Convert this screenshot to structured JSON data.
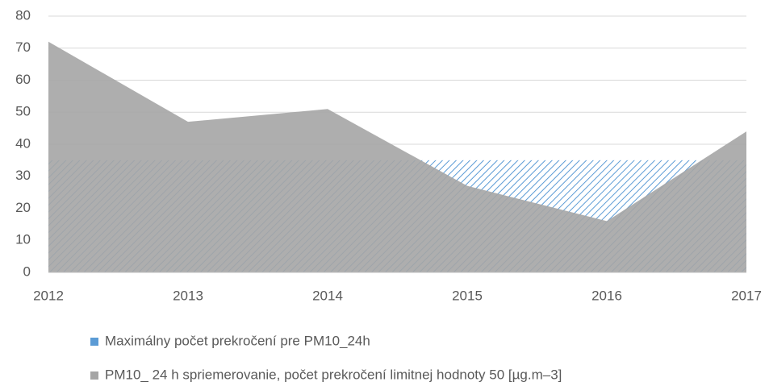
{
  "chart_data": {
    "type": "area",
    "categories": [
      "2012",
      "2013",
      "2014",
      "2015",
      "2016",
      "2017"
    ],
    "series": [
      {
        "name": "Maximálny počet prekročení pre PM10_24h",
        "color": "#5b9bd5",
        "values": [
          35,
          35,
          35,
          35,
          35,
          35
        ]
      },
      {
        "name": "PM10_ 24 h spriemerovanie, počet prekročení limitnej  hodnoty 50 [µg.m–3]",
        "color": "#a5a5a5",
        "values": [
          72,
          47,
          51,
          27,
          16,
          44
        ]
      }
    ],
    "ylim": [
      0,
      80
    ],
    "yticks": [
      0,
      10,
      20,
      30,
      40,
      50,
      60,
      70,
      80
    ],
    "grid": true,
    "legend": "bottom"
  }
}
